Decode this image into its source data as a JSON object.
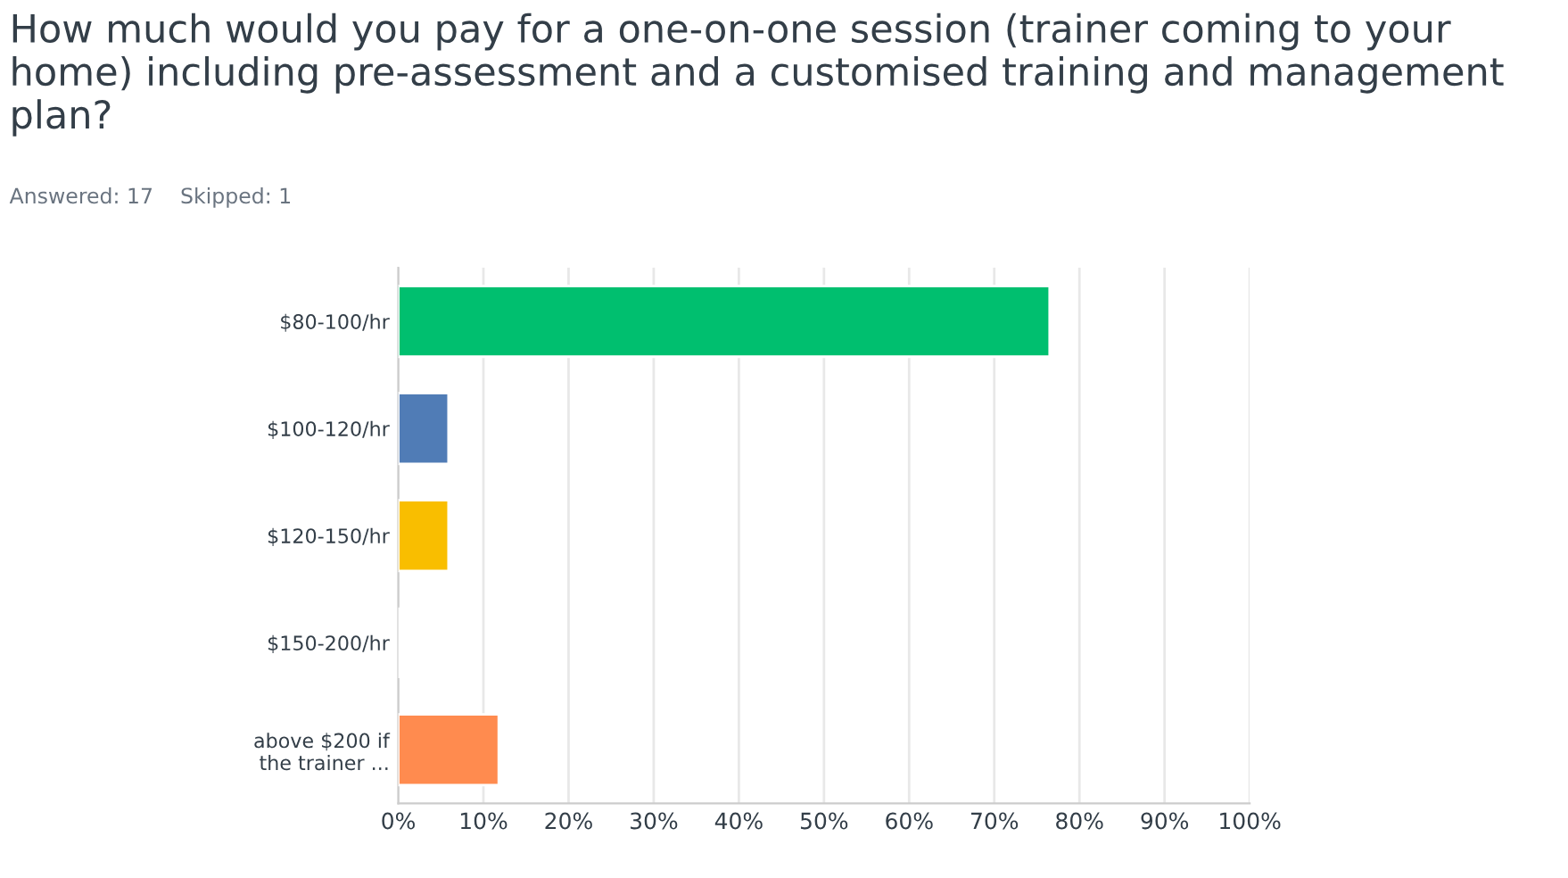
{
  "chart_data": {
    "type": "bar",
    "orientation": "horizontal",
    "title": "How much would you pay for a one-on-one session (trainer coming to your home) including pre-assessment and a customised training and management plan?",
    "subtitle": "Answered: 17    Skipped: 1",
    "categories": [
      "$80-100/hr",
      "$100-120/hr",
      "$120-150/hr",
      "$150-200/hr",
      "above $200 if\nthe trainer ..."
    ],
    "values": [
      76.5,
      5.9,
      5.9,
      0,
      11.8
    ],
    "colors": [
      "#00bf6f",
      "#507cb6",
      "#f9be00",
      null,
      "#ff8b4f"
    ],
    "xlim": [
      0,
      100
    ],
    "xticks": [
      {
        "value": 0,
        "label": "0%"
      },
      {
        "value": 10,
        "label": "10%"
      },
      {
        "value": 20,
        "label": "20%"
      },
      {
        "value": 30,
        "label": "30%"
      },
      {
        "value": 40,
        "label": "40%"
      },
      {
        "value": 50,
        "label": "50%"
      },
      {
        "value": 60,
        "label": "60%"
      },
      {
        "value": 70,
        "label": "70%"
      },
      {
        "value": 80,
        "label": "80%"
      },
      {
        "value": 90,
        "label": "90%"
      },
      {
        "value": 100,
        "label": "100%"
      }
    ],
    "grid": "x"
  }
}
